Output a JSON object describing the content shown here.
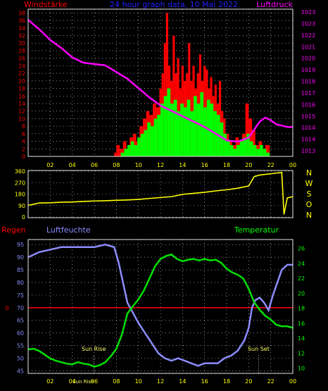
{
  "header": {
    "left_label": "Windstärke",
    "title": "24 hour graph data, 10 Mai 2022",
    "right_label": "Luftdruck"
  },
  "colors": {
    "frame": "#e6e6e6",
    "grid_dot": "#e6e6e6",
    "wind_gust": "#ff0000",
    "wind_avg": "#00ff00",
    "pressure": "#ff00ff",
    "direction": "#ffff00",
    "humidity": "#8c8cff",
    "temperature": "#00e000",
    "rain": "#ff0000",
    "title": "#2222ff",
    "wind_axis": "#ff0000",
    "pressure_axis": "#ff00ff",
    "direction_axis": "#ffff00",
    "humidity_axis": "#8c8cff",
    "temp_axis": "#00ff00",
    "hour_axis": "#ffff00"
  },
  "hours": [
    "02",
    "04",
    "06",
    "08",
    "10",
    "12",
    "14",
    "16",
    "18",
    "20",
    "22",
    "00"
  ],
  "chart_data": [
    {
      "type": "bar",
      "name": "wind-pressure",
      "y_left_ticks": [
        0,
        2,
        4,
        6,
        8,
        10,
        12,
        14,
        16,
        18,
        20,
        22,
        24,
        26,
        28,
        30,
        32,
        34,
        36,
        38
      ],
      "y_left_range": [
        0,
        39
      ],
      "y_right_ticks": [
        1013,
        1014,
        1015,
        1016,
        1017,
        1018,
        1019,
        1020,
        1021,
        1022,
        1023
      ],
      "y_right_tick_labels": [
        "1013",
        "1014",
        "1014",
        "1015",
        "1016",
        "1017",
        "1018",
        "1019",
        "1020",
        "1021",
        "1022",
        "1023",
        "1023"
      ],
      "y_right_range": [
        1012.4,
        1023.4
      ],
      "x_range": [
        0,
        24
      ],
      "wind_gust": [
        [
          0,
          0
        ],
        [
          7.8,
          1
        ],
        [
          8.0,
          3
        ],
        [
          8.3,
          2
        ],
        [
          8.6,
          4
        ],
        [
          8.9,
          2
        ],
        [
          9.2,
          5
        ],
        [
          9.5,
          6
        ],
        [
          9.8,
          4
        ],
        [
          10.1,
          8
        ],
        [
          10.4,
          10
        ],
        [
          10.7,
          12
        ],
        [
          11.0,
          11
        ],
        [
          11.3,
          14
        ],
        [
          11.6,
          13
        ],
        [
          11.9,
          18
        ],
        [
          12.1,
          22
        ],
        [
          12.3,
          30
        ],
        [
          12.5,
          38
        ],
        [
          12.7,
          24
        ],
        [
          12.9,
          20
        ],
        [
          13.1,
          32
        ],
        [
          13.3,
          22
        ],
        [
          13.5,
          26
        ],
        [
          13.7,
          18
        ],
        [
          13.9,
          24
        ],
        [
          14.1,
          20
        ],
        [
          14.3,
          22
        ],
        [
          14.5,
          30
        ],
        [
          14.7,
          20
        ],
        [
          14.9,
          24
        ],
        [
          15.1,
          18
        ],
        [
          15.3,
          22
        ],
        [
          15.5,
          27
        ],
        [
          15.7,
          20
        ],
        [
          15.9,
          24
        ],
        [
          16.1,
          23
        ],
        [
          16.3,
          18
        ],
        [
          16.5,
          21
        ],
        [
          16.7,
          16
        ],
        [
          16.9,
          19
        ],
        [
          17.1,
          14
        ],
        [
          17.3,
          20
        ],
        [
          17.5,
          12
        ],
        [
          17.7,
          10
        ],
        [
          17.9,
          6
        ],
        [
          18.2,
          4
        ],
        [
          18.5,
          3
        ],
        [
          18.8,
          5
        ],
        [
          19.1,
          4
        ],
        [
          19.4,
          6
        ],
        [
          19.7,
          14
        ],
        [
          20.0,
          10
        ],
        [
          20.3,
          7
        ],
        [
          20.6,
          3
        ],
        [
          20.9,
          4
        ],
        [
          21.2,
          2
        ],
        [
          21.5,
          3
        ],
        [
          21.9,
          0
        ]
      ],
      "wind_avg": [
        [
          0,
          0
        ],
        [
          8.4,
          1
        ],
        [
          8.7,
          2
        ],
        [
          9.0,
          3
        ],
        [
          9.3,
          4
        ],
        [
          9.6,
          3
        ],
        [
          9.9,
          5
        ],
        [
          10.2,
          6
        ],
        [
          10.5,
          7
        ],
        [
          10.8,
          9
        ],
        [
          11.1,
          8
        ],
        [
          11.4,
          10
        ],
        [
          11.7,
          11
        ],
        [
          12.0,
          14
        ],
        [
          12.3,
          16
        ],
        [
          12.6,
          18
        ],
        [
          12.9,
          14
        ],
        [
          13.2,
          15
        ],
        [
          13.5,
          12
        ],
        [
          13.8,
          14
        ],
        [
          14.1,
          13
        ],
        [
          14.4,
          15
        ],
        [
          14.7,
          12
        ],
        [
          15.0,
          16
        ],
        [
          15.3,
          14
        ],
        [
          15.6,
          17
        ],
        [
          15.9,
          13
        ],
        [
          16.2,
          15
        ],
        [
          16.5,
          14
        ],
        [
          16.8,
          12
        ],
        [
          17.1,
          11
        ],
        [
          17.4,
          9
        ],
        [
          17.7,
          6
        ],
        [
          18.0,
          4
        ],
        [
          18.3,
          3
        ],
        [
          18.6,
          2
        ],
        [
          18.9,
          3
        ],
        [
          19.2,
          4
        ],
        [
          19.5,
          5
        ],
        [
          19.8,
          6
        ],
        [
          20.1,
          4
        ],
        [
          20.4,
          3
        ],
        [
          20.7,
          2
        ],
        [
          21.0,
          3
        ],
        [
          21.3,
          2
        ],
        [
          21.6,
          1
        ],
        [
          21.9,
          0
        ]
      ],
      "pressure": [
        [
          0,
          1022.6
        ],
        [
          1.0,
          1021.9
        ],
        [
          2.0,
          1021.1
        ],
        [
          3.0,
          1020.5
        ],
        [
          4.0,
          1019.8
        ],
        [
          5.0,
          1019.4
        ],
        [
          6.0,
          1019.3
        ],
        [
          7.0,
          1019.2
        ],
        [
          8.0,
          1018.7
        ],
        [
          9.0,
          1018.2
        ],
        [
          10.0,
          1017.5
        ],
        [
          11.0,
          1016.8
        ],
        [
          12.0,
          1016.2
        ],
        [
          13.0,
          1015.8
        ],
        [
          14.0,
          1015.4
        ],
        [
          15.0,
          1015.0
        ],
        [
          16.0,
          1014.6
        ],
        [
          17.0,
          1014.1
        ],
        [
          18.0,
          1013.6
        ],
        [
          19.0,
          1013.5
        ],
        [
          20.0,
          1013.8
        ],
        [
          20.5,
          1014.4
        ],
        [
          21.0,
          1015.0
        ],
        [
          21.5,
          1015.3
        ],
        [
          22.0,
          1015.1
        ],
        [
          22.5,
          1014.8
        ],
        [
          23.0,
          1014.7
        ],
        [
          23.5,
          1014.6
        ],
        [
          24.0,
          1014.6
        ]
      ]
    },
    {
      "type": "line",
      "name": "wind-direction",
      "y_ticks": [
        0,
        90,
        180,
        270,
        360
      ],
      "y_range": [
        0,
        360
      ],
      "x_range": [
        0,
        24
      ],
      "direction_letters": [
        "N",
        "W",
        "S",
        "O",
        "N"
      ],
      "direction": [
        [
          0,
          92
        ],
        [
          0.5,
          100
        ],
        [
          1,
          110
        ],
        [
          2,
          112
        ],
        [
          3,
          116
        ],
        [
          4,
          118
        ],
        [
          5,
          122
        ],
        [
          6,
          126
        ],
        [
          7,
          128
        ],
        [
          8,
          131
        ],
        [
          9,
          134
        ],
        [
          10,
          138
        ],
        [
          11,
          146
        ],
        [
          12,
          153
        ],
        [
          13,
          160
        ],
        [
          14,
          178
        ],
        [
          15,
          186
        ],
        [
          16,
          194
        ],
        [
          17,
          205
        ],
        [
          18,
          214
        ],
        [
          19,
          226
        ],
        [
          20,
          244
        ],
        [
          20.5,
          318
        ],
        [
          21,
          330
        ],
        [
          22,
          340
        ],
        [
          23,
          350
        ],
        [
          23.2,
          20
        ],
        [
          23.5,
          150
        ],
        [
          24,
          160
        ]
      ]
    },
    {
      "type": "line",
      "name": "humidity-temperature",
      "left_title": "Regen",
      "left2_title": "Luftfeuchte",
      "right_title": "Temperatur",
      "y_left_ticks": [
        45,
        50,
        55,
        60,
        65,
        70,
        75,
        80,
        85,
        90,
        95
      ],
      "y_left_range": [
        44,
        97
      ],
      "y_rain_ticks": [
        0
      ],
      "y_rain_label_value": 70,
      "y_right_ticks": [
        10,
        12,
        14,
        16,
        18,
        20,
        22,
        24,
        26
      ],
      "y_right_range": [
        9.3,
        27.2
      ],
      "x_range": [
        0,
        24
      ],
      "sun_rise": {
        "label": "Sun Rise",
        "time": 5.95
      },
      "sun_set": {
        "label": "Sun Set",
        "time": 20.9
      },
      "sun_small_label": "Sun Rise",
      "humidity": [
        [
          0,
          90
        ],
        [
          0.5,
          91
        ],
        [
          1,
          92
        ],
        [
          2,
          93
        ],
        [
          3,
          94
        ],
        [
          4,
          94
        ],
        [
          5,
          94
        ],
        [
          6,
          94
        ],
        [
          7,
          95
        ],
        [
          7.8,
          94
        ],
        [
          8.2,
          88
        ],
        [
          8.6,
          80
        ],
        [
          9.0,
          72
        ],
        [
          9.5,
          68
        ],
        [
          10.0,
          64
        ],
        [
          10.6,
          60
        ],
        [
          11.2,
          56
        ],
        [
          11.8,
          52
        ],
        [
          12.4,
          50
        ],
        [
          13.0,
          49
        ],
        [
          13.6,
          50
        ],
        [
          14.2,
          49
        ],
        [
          14.8,
          48
        ],
        [
          15.4,
          47
        ],
        [
          16.0,
          48
        ],
        [
          16.6,
          48
        ],
        [
          17.2,
          48
        ],
        [
          17.8,
          50
        ],
        [
          18.4,
          51
        ],
        [
          19.0,
          53
        ],
        [
          19.6,
          57
        ],
        [
          20.0,
          62
        ],
        [
          20.3,
          70
        ],
        [
          20.6,
          73
        ],
        [
          21.0,
          74
        ],
        [
          21.4,
          72
        ],
        [
          21.8,
          69
        ],
        [
          22.2,
          75
        ],
        [
          22.6,
          80
        ],
        [
          23.0,
          85
        ],
        [
          23.5,
          87
        ],
        [
          24.0,
          87
        ]
      ],
      "temperature": [
        [
          0,
          12.5
        ],
        [
          0.5,
          12.6
        ],
        [
          1,
          12.3
        ],
        [
          1.5,
          11.8
        ],
        [
          2,
          11.3
        ],
        [
          2.5,
          11.0
        ],
        [
          3,
          10.8
        ],
        [
          3.5,
          10.6
        ],
        [
          4,
          10.5
        ],
        [
          4.5,
          10.8
        ],
        [
          5,
          10.6
        ],
        [
          5.5,
          10.5
        ],
        [
          6,
          10.2
        ],
        [
          6.5,
          10.4
        ],
        [
          7,
          10.8
        ],
        [
          7.5,
          11.6
        ],
        [
          8,
          12.6
        ],
        [
          8.5,
          14.5
        ],
        [
          9,
          17.3
        ],
        [
          9.5,
          18.3
        ],
        [
          10,
          19.2
        ],
        [
          10.5,
          20.4
        ],
        [
          11,
          22.0
        ],
        [
          11.5,
          23.6
        ],
        [
          12,
          24.6
        ],
        [
          12.5,
          25.0
        ],
        [
          13,
          25.2
        ],
        [
          13.5,
          24.6
        ],
        [
          14,
          24.3
        ],
        [
          14.5,
          24.5
        ],
        [
          15,
          24.6
        ],
        [
          15.5,
          24.4
        ],
        [
          16,
          24.6
        ],
        [
          16.5,
          24.4
        ],
        [
          17,
          24.5
        ],
        [
          17.5,
          24.1
        ],
        [
          18,
          23.3
        ],
        [
          18.5,
          22.8
        ],
        [
          19,
          22.5
        ],
        [
          19.5,
          22.0
        ],
        [
          20,
          20.6
        ],
        [
          20.5,
          18.8
        ],
        [
          21,
          17.8
        ],
        [
          21.5,
          17.0
        ],
        [
          22,
          16.5
        ],
        [
          22.5,
          15.8
        ],
        [
          23,
          15.6
        ],
        [
          23.5,
          15.6
        ],
        [
          24,
          15.4
        ]
      ]
    }
  ]
}
